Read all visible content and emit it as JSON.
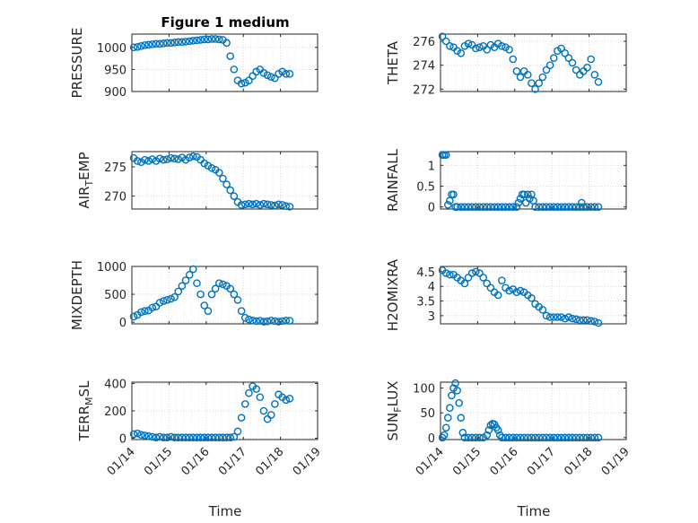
{
  "figure": {
    "title": "Figure 1 medium",
    "xlabel": "Time"
  },
  "style": {
    "marker_color": "#0072bd",
    "grid_color": "#d9d9d9",
    "axis_color": "#262626"
  },
  "x_ticks": [
    "01/14",
    "01/15",
    "01/16",
    "01/17",
    "01/18",
    "01/19"
  ],
  "chart_data": [
    {
      "type": "scatter",
      "ylabel": "PRESSURE",
      "ylim": [
        900,
        1030
      ],
      "yticks": [
        900,
        950,
        1000
      ],
      "ytick_labels": [
        "900",
        "950",
        "1000"
      ],
      "xlim": [
        0,
        5
      ],
      "x": [
        0.05,
        0.15,
        0.25,
        0.35,
        0.45,
        0.55,
        0.65,
        0.75,
        0.85,
        0.95,
        1.05,
        1.15,
        1.25,
        1.35,
        1.45,
        1.55,
        1.65,
        1.75,
        1.85,
        1.95,
        2.05,
        2.15,
        2.25,
        2.35,
        2.45,
        2.55,
        2.65,
        2.75,
        2.85,
        2.95,
        3.05,
        3.15,
        3.25,
        3.35,
        3.45,
        3.55,
        3.65,
        3.75,
        3.85,
        3.95,
        4.05,
        4.15,
        4.25
      ],
      "y": [
        1000,
        1001,
        1003,
        1005,
        1006,
        1007,
        1008,
        1008,
        1009,
        1010,
        1010,
        1011,
        1012,
        1012,
        1013,
        1014,
        1015,
        1016,
        1017,
        1018,
        1018,
        1019,
        1019,
        1018,
        1017,
        1010,
        980,
        950,
        925,
        918,
        920,
        925,
        935,
        945,
        950,
        942,
        937,
        933,
        930,
        940,
        945,
        940,
        940
      ]
    },
    {
      "type": "scatter",
      "ylabel": "THETA",
      "ylim": [
        271.8,
        276.6
      ],
      "yticks": [
        272,
        274,
        276
      ],
      "ytick_labels": [
        "272",
        "274",
        "276"
      ],
      "xlim": [
        0,
        5
      ],
      "x": [
        0.05,
        0.15,
        0.25,
        0.35,
        0.45,
        0.55,
        0.65,
        0.75,
        0.85,
        0.95,
        1.05,
        1.15,
        1.25,
        1.35,
        1.45,
        1.55,
        1.65,
        1.75,
        1.85,
        1.95,
        2.05,
        2.15,
        2.25,
        2.35,
        2.45,
        2.55,
        2.65,
        2.75,
        2.85,
        2.95,
        3.05,
        3.15,
        3.25,
        3.35,
        3.45,
        3.55,
        3.65,
        3.75,
        3.85,
        3.95,
        4.05,
        4.15,
        4.25
      ],
      "y": [
        276.4,
        276.0,
        275.6,
        275.5,
        275.2,
        275.0,
        275.6,
        275.8,
        275.7,
        275.4,
        275.5,
        275.6,
        275.3,
        275.7,
        275.5,
        275.8,
        275.6,
        275.5,
        275.3,
        274.5,
        273.5,
        273.0,
        273.5,
        273.2,
        272.5,
        272.0,
        272.5,
        273.0,
        273.6,
        274.0,
        274.6,
        275.2,
        275.4,
        275.0,
        274.6,
        274.2,
        273.6,
        273.2,
        273.5,
        273.8,
        274.5,
        273.2,
        272.6
      ]
    },
    {
      "type": "scatter",
      "ylabel": "AIR",
      "ylabel_sub": "T",
      "ylabel_after": "EMP",
      "ylim": [
        267.8,
        277.6
      ],
      "yticks": [
        270,
        275
      ],
      "ytick_labels": [
        "270",
        "275"
      ],
      "xlim": [
        0,
        5
      ],
      "x": [
        0.05,
        0.15,
        0.25,
        0.35,
        0.45,
        0.55,
        0.65,
        0.75,
        0.85,
        0.95,
        1.05,
        1.15,
        1.25,
        1.35,
        1.45,
        1.55,
        1.65,
        1.75,
        1.85,
        1.95,
        2.05,
        2.15,
        2.25,
        2.35,
        2.45,
        2.55,
        2.65,
        2.75,
        2.85,
        2.95,
        3.05,
        3.15,
        3.25,
        3.35,
        3.45,
        3.55,
        3.65,
        3.75,
        3.85,
        3.95,
        4.05,
        4.15,
        4.25
      ],
      "y": [
        276.5,
        276.0,
        275.8,
        276.2,
        276.0,
        276.3,
        276.0,
        276.4,
        276.2,
        276.3,
        276.5,
        276.4,
        276.3,
        276.6,
        276.2,
        276.6,
        276.8,
        276.7,
        276.2,
        275.6,
        275.2,
        274.8,
        274.5,
        274.0,
        273.0,
        272.0,
        271.0,
        270.0,
        269.0,
        268.5,
        268.6,
        268.7,
        268.6,
        268.7,
        268.5,
        268.7,
        268.6,
        268.5,
        268.4,
        268.6,
        268.5,
        268.3,
        268.2
      ]
    },
    {
      "type": "scatter",
      "ylabel": "RAINFALL",
      "ylim": [
        -0.05,
        1.33
      ],
      "yticks": [
        0,
        0.5,
        1
      ],
      "ytick_labels": [
        "0",
        "0.5",
        "1"
      ],
      "xlim": [
        0,
        5
      ],
      "x": [
        0.05,
        0.1,
        0.15,
        0.2,
        0.25,
        0.3,
        0.35,
        0.4,
        0.45,
        0.55,
        0.65,
        0.75,
        0.85,
        0.95,
        1.05,
        1.15,
        1.25,
        1.35,
        1.45,
        1.55,
        1.65,
        1.75,
        1.85,
        1.95,
        2.05,
        2.1,
        2.15,
        2.2,
        2.25,
        2.3,
        2.35,
        2.4,
        2.45,
        2.5,
        2.55,
        2.65,
        2.75,
        2.85,
        2.95,
        3.05,
        3.15,
        3.25,
        3.35,
        3.45,
        3.55,
        3.65,
        3.75,
        3.8,
        3.85,
        3.95,
        4.05,
        4.15,
        4.25
      ],
      "y": [
        1.25,
        1.25,
        1.25,
        0.05,
        0.15,
        0.3,
        0.3,
        0.0,
        0.0,
        0.0,
        0.0,
        0.0,
        0.0,
        0.0,
        0.0,
        0.0,
        0.0,
        0.0,
        0.0,
        0.0,
        0.0,
        0.0,
        0.0,
        0.0,
        0.0,
        0.1,
        0.2,
        0.3,
        0.3,
        0.1,
        0.3,
        0.2,
        0.3,
        0.15,
        0.0,
        0.0,
        0.0,
        0.0,
        0.0,
        0.0,
        0.0,
        0.0,
        0.0,
        0.0,
        0.0,
        0.0,
        0.0,
        0.1,
        0.0,
        0.0,
        0.0,
        0.0,
        0.0
      ]
    },
    {
      "type": "scatter",
      "ylabel": "MIXDEPTH",
      "ylim": [
        -30,
        1000
      ],
      "yticks": [
        0,
        500,
        1000
      ],
      "ytick_labels": [
        "0",
        "500",
        "1000"
      ],
      "xlim": [
        0,
        5
      ],
      "x": [
        0.05,
        0.15,
        0.25,
        0.35,
        0.45,
        0.55,
        0.65,
        0.75,
        0.85,
        0.95,
        1.05,
        1.15,
        1.25,
        1.35,
        1.45,
        1.55,
        1.65,
        1.75,
        1.85,
        1.95,
        2.05,
        2.15,
        2.25,
        2.35,
        2.45,
        2.55,
        2.65,
        2.75,
        2.85,
        2.95,
        3.05,
        3.15,
        3.25,
        3.35,
        3.45,
        3.55,
        3.65,
        3.75,
        3.85,
        3.95,
        4.05,
        4.15,
        4.25
      ],
      "y": [
        100,
        130,
        180,
        200,
        210,
        260,
        280,
        350,
        380,
        400,
        420,
        450,
        550,
        650,
        750,
        850,
        950,
        700,
        500,
        300,
        200,
        500,
        600,
        700,
        680,
        650,
        600,
        500,
        400,
        200,
        80,
        50,
        30,
        20,
        25,
        10,
        15,
        30,
        20,
        10,
        20,
        30,
        25
      ]
    },
    {
      "type": "scatter",
      "ylabel": "H2OMIXRA",
      "ylim": [
        2.72,
        4.68
      ],
      "yticks": [
        3,
        3.5,
        4,
        4.5
      ],
      "ytick_labels": [
        "3",
        "3.5",
        "4",
        "4.5"
      ],
      "xlim": [
        0,
        5
      ],
      "x": [
        0.05,
        0.15,
        0.25,
        0.35,
        0.45,
        0.55,
        0.65,
        0.75,
        0.85,
        0.95,
        1.05,
        1.15,
        1.25,
        1.35,
        1.45,
        1.55,
        1.65,
        1.75,
        1.85,
        1.95,
        2.05,
        2.15,
        2.25,
        2.35,
        2.45,
        2.55,
        2.65,
        2.75,
        2.85,
        2.95,
        3.05,
        3.15,
        3.25,
        3.35,
        3.45,
        3.55,
        3.65,
        3.75,
        3.85,
        3.95,
        4.05,
        4.15,
        4.25
      ],
      "y": [
        4.55,
        4.45,
        4.4,
        4.4,
        4.3,
        4.2,
        4.1,
        4.3,
        4.45,
        4.5,
        4.45,
        4.3,
        4.1,
        3.95,
        3.8,
        3.7,
        4.2,
        3.95,
        3.85,
        3.9,
        3.8,
        3.85,
        3.8,
        3.7,
        3.6,
        3.4,
        3.3,
        3.2,
        3.0,
        2.95,
        2.95,
        2.95,
        2.95,
        2.9,
        2.95,
        2.9,
        2.88,
        2.85,
        2.85,
        2.85,
        2.82,
        2.8,
        2.75
      ]
    },
    {
      "type": "scatter",
      "ylabel": "TERR",
      "ylabel_sub": "M",
      "ylabel_after": "SL",
      "ylim": [
        -10,
        410
      ],
      "yticks": [
        0,
        200,
        400
      ],
      "ytick_labels": [
        "0",
        "200",
        "400"
      ],
      "xlim": [
        0,
        5
      ],
      "x": [
        0.05,
        0.15,
        0.25,
        0.35,
        0.45,
        0.55,
        0.65,
        0.75,
        0.85,
        0.95,
        1.05,
        1.15,
        1.25,
        1.35,
        1.45,
        1.55,
        1.65,
        1.75,
        1.85,
        1.95,
        2.05,
        2.15,
        2.25,
        2.35,
        2.45,
        2.55,
        2.65,
        2.75,
        2.85,
        2.95,
        3.05,
        3.15,
        3.25,
        3.35,
        3.45,
        3.55,
        3.65,
        3.75,
        3.85,
        3.95,
        4.05,
        4.15,
        4.25
      ],
      "y": [
        30,
        35,
        25,
        20,
        15,
        10,
        5,
        10,
        5,
        5,
        10,
        5,
        5,
        5,
        5,
        5,
        5,
        5,
        5,
        5,
        5,
        5,
        5,
        5,
        5,
        5,
        5,
        10,
        50,
        150,
        250,
        330,
        380,
        360,
        300,
        200,
        140,
        170,
        250,
        320,
        300,
        280,
        290
      ]
    },
    {
      "type": "scatter",
      "ylabel": "SUN",
      "ylabel_sub": "F",
      "ylabel_after": "LUX",
      "ylim": [
        -4,
        112
      ],
      "yticks": [
        0,
        50,
        100
      ],
      "ytick_labels": [
        "0",
        "50",
        "100"
      ],
      "xlim": [
        0,
        5
      ],
      "x": [
        0.05,
        0.1,
        0.15,
        0.2,
        0.25,
        0.3,
        0.35,
        0.4,
        0.45,
        0.5,
        0.55,
        0.6,
        0.65,
        0.75,
        0.85,
        0.95,
        1.05,
        1.15,
        1.25,
        1.3,
        1.35,
        1.4,
        1.45,
        1.5,
        1.55,
        1.6,
        1.65,
        1.75,
        1.85,
        1.95,
        2.05,
        2.15,
        2.25,
        2.35,
        2.45,
        2.55,
        2.65,
        2.75,
        2.85,
        2.95,
        3.05,
        3.15,
        3.25,
        3.35,
        3.45,
        3.55,
        3.65,
        3.75,
        3.85,
        3.95,
        4.05,
        4.15,
        4.25
      ],
      "y": [
        0,
        5,
        20,
        40,
        60,
        85,
        100,
        110,
        95,
        70,
        40,
        10,
        0,
        0,
        0,
        0,
        0,
        0,
        5,
        15,
        25,
        28,
        27,
        20,
        15,
        5,
        0,
        0,
        0,
        0,
        0,
        0,
        0,
        0,
        0,
        0,
        0,
        0,
        0,
        0,
        0,
        0,
        0,
        0,
        0,
        0,
        0,
        0,
        0,
        0,
        0,
        0,
        0
      ]
    }
  ]
}
